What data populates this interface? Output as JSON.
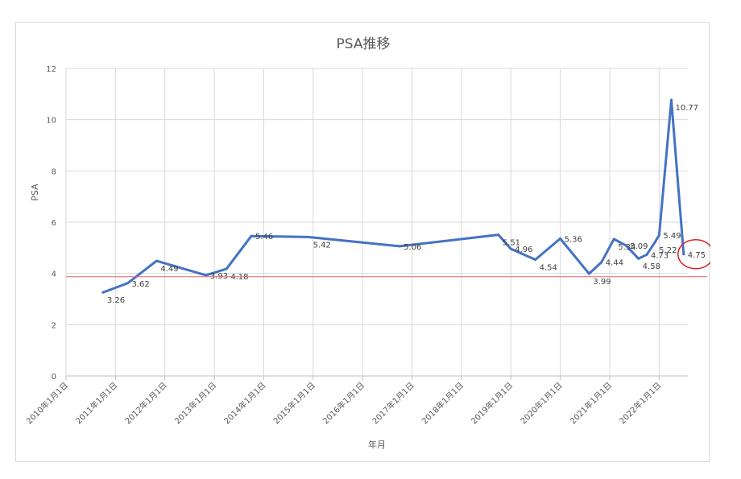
{
  "chart_data": {
    "type": "line",
    "title": "PSA推移",
    "xlabel": "年月",
    "ylabel": "PSA",
    "ylim": [
      0,
      12
    ],
    "yticks": [
      "0",
      "2",
      "4",
      "6",
      "8",
      "10",
      "12"
    ],
    "xticks": [
      "2010年1月1日",
      "2011年1月1日",
      "2012年1月1日",
      "2013年1月1日",
      "2014年1月1日",
      "2015年1月1日",
      "2016年1月1日",
      "2017年1月1日",
      "2018年1月1日",
      "2019年1月1日",
      "2020年1月1日",
      "2021年1月1日",
      "2022年1月1日"
    ],
    "grid": true,
    "x_type": "date",
    "x_range": [
      "2010-01-01",
      "2022-07-01"
    ],
    "series": [
      {
        "color": "#4472c4",
        "points": [
          {
            "x": "2010-10-01",
            "y": 3.26,
            "label": "3.26"
          },
          {
            "x": "2011-04-01",
            "y": 3.62,
            "label": "3.62"
          },
          {
            "x": "2011-11-01",
            "y": 4.49,
            "label": "4.49"
          },
          {
            "x": "2012-11-01",
            "y": 3.93,
            "label": "3.93"
          },
          {
            "x": "2013-04-01",
            "y": 4.18,
            "label": "4.18"
          },
          {
            "x": "2013-10-01",
            "y": 5.46,
            "label": "5.46"
          },
          {
            "x": "2014-12-01",
            "y": 5.42,
            "label": "5.42"
          },
          {
            "x": "2016-10-01",
            "y": 5.06,
            "label": "5.06"
          },
          {
            "x": "2018-10-01",
            "y": 5.51,
            "label": "5.51"
          },
          {
            "x": "2019-01-01",
            "y": 4.96,
            "label": "4.96"
          },
          {
            "x": "2019-07-01",
            "y": 4.54,
            "label": "4.54"
          },
          {
            "x": "2020-01-01",
            "y": 5.36,
            "label": "5.36"
          },
          {
            "x": "2020-08-01",
            "y": 3.99,
            "label": "3.99"
          },
          {
            "x": "2020-11-01",
            "y": 4.44,
            "label": "4.44"
          },
          {
            "x": "2021-02-01",
            "y": 5.34,
            "label": "5.34"
          },
          {
            "x": "2021-05-01",
            "y": 5.09,
            "label": "5.09"
          },
          {
            "x": "2021-08-01",
            "y": 4.58,
            "label": "4.58"
          },
          {
            "x": "2021-10-01",
            "y": 4.73,
            "label": "4.73"
          },
          {
            "x": "2021-12-01",
            "y": 5.22,
            "label": "5.22"
          },
          {
            "x": "2022-01-01",
            "y": 5.49,
            "label": "5.49"
          },
          {
            "x": "2022-04-01",
            "y": 10.77,
            "label": "10.77"
          },
          {
            "x": "2022-07-01",
            "y": 4.75,
            "label": "4.75"
          }
        ]
      }
    ],
    "annotations": {
      "reference_line": {
        "y": 3.87,
        "color": "#e06666"
      },
      "highlight_circle": {
        "point_label": "4.75",
        "color": "#e02020"
      }
    }
  }
}
